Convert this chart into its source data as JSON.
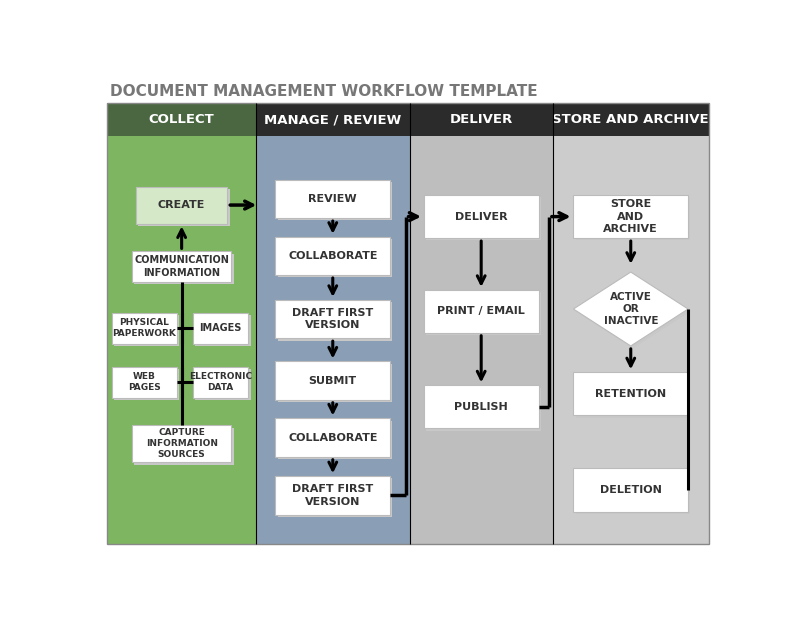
{
  "title": "DOCUMENT MANAGEMENT WORKFLOW TEMPLATE",
  "title_fontsize": 11,
  "title_color": "#777777",
  "col_headers": [
    "COLLECT",
    "MANAGE / REVIEW",
    "DELIVER",
    "STORE AND ARCHIVE"
  ],
  "col_header_bg": [
    "#4a6741",
    "#2b2b2b",
    "#2b2b2b",
    "#2b2b2b"
  ],
  "col_bg": [
    "#7db560",
    "#8a9fb5",
    "#bebebe",
    "#cccccc"
  ],
  "fig_bg": "#ffffff",
  "box_text_color": "#333333",
  "shadow_color": "#bbbbbb"
}
